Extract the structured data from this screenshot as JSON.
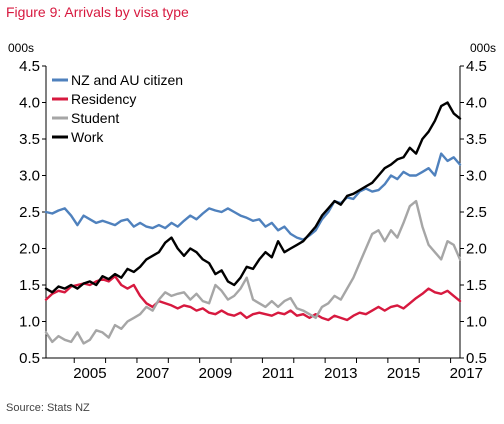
{
  "figure": {
    "title": "Figure 9: Arrivals by visa type",
    "source": "Source: Stats NZ"
  },
  "chart_data": {
    "type": "line",
    "title": "Figure 9: Arrivals by visa type",
    "ylabel_left": "000s",
    "ylabel_right": "000s",
    "ylim": [
      0.5,
      4.5
    ],
    "yticks": [
      "0.5",
      "1.0",
      "1.5",
      "2.0",
      "2.5",
      "3.0",
      "3.5",
      "4.0",
      "4.5"
    ],
    "xlim": [
      2004.1,
      2017.3
    ],
    "xticks": [
      "2005",
      "2007",
      "2009",
      "2011",
      "2013",
      "2015",
      "2017"
    ],
    "grid": false,
    "legend_position": "top-left",
    "series": [
      {
        "name": "NZ and AU citizen",
        "color": "#4f81bd",
        "x": [
          2004.1,
          2004.3,
          2004.5,
          2004.7,
          2004.9,
          2005.1,
          2005.3,
          2005.5,
          2005.7,
          2005.9,
          2006.1,
          2006.3,
          2006.5,
          2006.7,
          2006.9,
          2007.1,
          2007.3,
          2007.5,
          2007.7,
          2007.9,
          2008.1,
          2008.3,
          2008.5,
          2008.7,
          2008.9,
          2009.1,
          2009.3,
          2009.5,
          2009.7,
          2009.9,
          2010.1,
          2010.3,
          2010.5,
          2010.7,
          2010.9,
          2011.1,
          2011.3,
          2011.5,
          2011.7,
          2011.9,
          2012.1,
          2012.3,
          2012.5,
          2012.7,
          2012.9,
          2013.1,
          2013.3,
          2013.5,
          2013.7,
          2013.9,
          2014.1,
          2014.3,
          2014.5,
          2014.7,
          2014.9,
          2015.1,
          2015.3,
          2015.5,
          2015.7,
          2015.9,
          2016.1,
          2016.3,
          2016.5,
          2016.7,
          2016.9,
          2017.1,
          2017.3
        ],
        "values": [
          2.5,
          2.48,
          2.52,
          2.55,
          2.45,
          2.32,
          2.45,
          2.4,
          2.35,
          2.38,
          2.35,
          2.32,
          2.38,
          2.4,
          2.3,
          2.35,
          2.3,
          2.28,
          2.32,
          2.28,
          2.35,
          2.3,
          2.38,
          2.45,
          2.4,
          2.48,
          2.55,
          2.52,
          2.5,
          2.55,
          2.5,
          2.45,
          2.42,
          2.38,
          2.4,
          2.3,
          2.35,
          2.25,
          2.3,
          2.2,
          2.15,
          2.12,
          2.18,
          2.25,
          2.4,
          2.5,
          2.65,
          2.62,
          2.7,
          2.68,
          2.78,
          2.82,
          2.78,
          2.8,
          2.88,
          3.0,
          2.95,
          3.05,
          3.0,
          3.0,
          3.05,
          3.1,
          3.0,
          3.3,
          3.2,
          3.25,
          3.15
        ]
      },
      {
        "name": "Residency",
        "color": "#d7193f",
        "x": [
          2004.1,
          2004.3,
          2004.5,
          2004.7,
          2004.9,
          2005.1,
          2005.3,
          2005.5,
          2005.7,
          2005.9,
          2006.1,
          2006.3,
          2006.5,
          2006.7,
          2006.9,
          2007.1,
          2007.3,
          2007.5,
          2007.7,
          2007.9,
          2008.1,
          2008.3,
          2008.5,
          2008.7,
          2008.9,
          2009.1,
          2009.3,
          2009.5,
          2009.7,
          2009.9,
          2010.1,
          2010.3,
          2010.5,
          2010.7,
          2010.9,
          2011.1,
          2011.3,
          2011.5,
          2011.7,
          2011.9,
          2012.1,
          2012.3,
          2012.5,
          2012.7,
          2012.9,
          2013.1,
          2013.3,
          2013.5,
          2013.7,
          2013.9,
          2014.1,
          2014.3,
          2014.5,
          2014.7,
          2014.9,
          2015.1,
          2015.3,
          2015.5,
          2015.7,
          2015.9,
          2016.1,
          2016.3,
          2016.5,
          2016.7,
          2016.9,
          2017.1,
          2017.3
        ],
        "values": [
          1.3,
          1.38,
          1.42,
          1.4,
          1.48,
          1.5,
          1.52,
          1.5,
          1.55,
          1.58,
          1.55,
          1.62,
          1.5,
          1.45,
          1.5,
          1.35,
          1.25,
          1.2,
          1.28,
          1.25,
          1.22,
          1.18,
          1.22,
          1.2,
          1.15,
          1.18,
          1.12,
          1.1,
          1.15,
          1.1,
          1.08,
          1.12,
          1.05,
          1.1,
          1.12,
          1.1,
          1.08,
          1.12,
          1.1,
          1.15,
          1.08,
          1.1,
          1.05,
          1.1,
          1.05,
          1.02,
          1.08,
          1.05,
          1.02,
          1.08,
          1.12,
          1.1,
          1.15,
          1.2,
          1.15,
          1.2,
          1.22,
          1.18,
          1.25,
          1.32,
          1.38,
          1.45,
          1.4,
          1.38,
          1.42,
          1.35,
          1.28
        ]
      },
      {
        "name": "Student",
        "color": "#a6a6a6",
        "x": [
          2004.1,
          2004.3,
          2004.5,
          2004.7,
          2004.9,
          2005.1,
          2005.3,
          2005.5,
          2005.7,
          2005.9,
          2006.1,
          2006.3,
          2006.5,
          2006.7,
          2006.9,
          2007.1,
          2007.3,
          2007.5,
          2007.7,
          2007.9,
          2008.1,
          2008.3,
          2008.5,
          2008.7,
          2008.9,
          2009.1,
          2009.3,
          2009.5,
          2009.7,
          2009.9,
          2010.1,
          2010.3,
          2010.5,
          2010.7,
          2010.9,
          2011.1,
          2011.3,
          2011.5,
          2011.7,
          2011.9,
          2012.1,
          2012.3,
          2012.5,
          2012.7,
          2012.9,
          2013.1,
          2013.3,
          2013.5,
          2013.7,
          2013.9,
          2014.1,
          2014.3,
          2014.5,
          2014.7,
          2014.9,
          2015.1,
          2015.3,
          2015.5,
          2015.7,
          2015.9,
          2016.1,
          2016.3,
          2016.5,
          2016.7,
          2016.9,
          2017.1,
          2017.3
        ],
        "values": [
          0.85,
          0.72,
          0.8,
          0.75,
          0.72,
          0.85,
          0.7,
          0.75,
          0.88,
          0.85,
          0.78,
          0.95,
          0.9,
          1.0,
          1.05,
          1.1,
          1.2,
          1.15,
          1.3,
          1.4,
          1.35,
          1.38,
          1.4,
          1.3,
          1.38,
          1.28,
          1.25,
          1.5,
          1.42,
          1.3,
          1.35,
          1.45,
          1.6,
          1.3,
          1.25,
          1.2,
          1.28,
          1.2,
          1.28,
          1.32,
          1.18,
          1.15,
          1.1,
          1.05,
          1.2,
          1.25,
          1.35,
          1.3,
          1.45,
          1.6,
          1.8,
          2.0,
          2.2,
          2.25,
          2.1,
          2.25,
          2.15,
          2.35,
          2.58,
          2.65,
          2.3,
          2.05,
          1.95,
          1.85,
          2.1,
          2.05,
          1.85
        ]
      },
      {
        "name": "Work",
        "color": "#000000",
        "x": [
          2004.1,
          2004.3,
          2004.5,
          2004.7,
          2004.9,
          2005.1,
          2005.3,
          2005.5,
          2005.7,
          2005.9,
          2006.1,
          2006.3,
          2006.5,
          2006.7,
          2006.9,
          2007.1,
          2007.3,
          2007.5,
          2007.7,
          2007.9,
          2008.1,
          2008.3,
          2008.5,
          2008.7,
          2008.9,
          2009.1,
          2009.3,
          2009.5,
          2009.7,
          2009.9,
          2010.1,
          2010.3,
          2010.5,
          2010.7,
          2010.9,
          2011.1,
          2011.3,
          2011.5,
          2011.7,
          2011.9,
          2012.1,
          2012.3,
          2012.5,
          2012.7,
          2012.9,
          2013.1,
          2013.3,
          2013.5,
          2013.7,
          2013.9,
          2014.1,
          2014.3,
          2014.5,
          2014.7,
          2014.9,
          2015.1,
          2015.3,
          2015.5,
          2015.7,
          2015.9,
          2016.1,
          2016.3,
          2016.5,
          2016.7,
          2016.9,
          2017.1,
          2017.3
        ],
        "values": [
          1.45,
          1.4,
          1.48,
          1.45,
          1.5,
          1.45,
          1.52,
          1.55,
          1.5,
          1.62,
          1.58,
          1.65,
          1.6,
          1.72,
          1.68,
          1.75,
          1.85,
          1.9,
          1.95,
          2.08,
          2.15,
          2.0,
          1.9,
          2.0,
          1.95,
          1.85,
          1.8,
          1.65,
          1.7,
          1.55,
          1.5,
          1.6,
          1.75,
          1.72,
          1.85,
          1.95,
          1.88,
          2.1,
          1.95,
          2.0,
          2.05,
          2.1,
          2.2,
          2.3,
          2.45,
          2.55,
          2.65,
          2.6,
          2.72,
          2.75,
          2.8,
          2.85,
          2.9,
          3.0,
          3.1,
          3.15,
          3.22,
          3.25,
          3.38,
          3.3,
          3.5,
          3.6,
          3.75,
          3.95,
          4.0,
          3.85,
          3.78
        ]
      }
    ]
  }
}
